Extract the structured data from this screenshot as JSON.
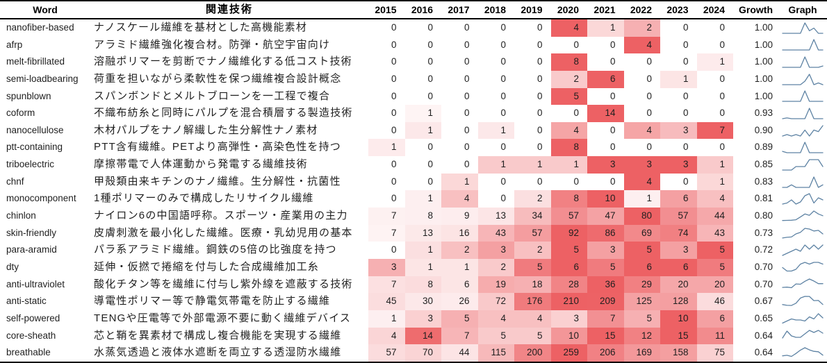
{
  "table": {
    "columns": {
      "word": "Word",
      "tech": "関連技術",
      "years": [
        "2015",
        "2016",
        "2017",
        "2018",
        "2019",
        "2020",
        "2021",
        "2022",
        "2023",
        "2024"
      ],
      "growth": "Growth",
      "graph": "Graph"
    }
  },
  "colors": {
    "heat_max_rgb": [
      237,
      97,
      100
    ],
    "heat_min": "#ffffff",
    "sparkline": "#5d82a3",
    "rule": "#000000",
    "text": "#1f1f1f"
  },
  "chart_data": {
    "type": "heatmap",
    "title": "",
    "x": [
      2015,
      2016,
      2017,
      2018,
      2019,
      2020,
      2021,
      2022,
      2023,
      2024
    ],
    "value_scale": "per-row normalized, white to red",
    "legend_position": "none",
    "grid": false,
    "rows": [
      {
        "word": "nanofiber-based",
        "tech": "ナノスケール繊維を基材とした高機能素材",
        "values": [
          0,
          0,
          0,
          0,
          0,
          4,
          1,
          2,
          0,
          0
        ],
        "growth": "1.00"
      },
      {
        "word": "afrp",
        "tech": "アラミド繊維強化複合材。防弾・航空宇宙向け",
        "values": [
          0,
          0,
          0,
          0,
          0,
          0,
          0,
          4,
          0,
          0
        ],
        "growth": "1.00"
      },
      {
        "word": "melt-fibrillated",
        "tech": "溶融ポリマーを剪断でナノ繊維化する低コスト技術",
        "values": [
          0,
          0,
          0,
          0,
          0,
          8,
          0,
          0,
          0,
          1
        ],
        "growth": "1.00"
      },
      {
        "word": "semi-loadbearing",
        "tech": "荷重を担いながら柔軟性を保つ繊維複合設計概念",
        "values": [
          0,
          0,
          0,
          0,
          0,
          2,
          6,
          0,
          1,
          0
        ],
        "growth": "1.00"
      },
      {
        "word": "spunblown",
        "tech": "スパンボンドとメルトブローンを一工程で複合",
        "values": [
          0,
          0,
          0,
          0,
          0,
          5,
          0,
          0,
          0,
          0
        ],
        "growth": "1.00"
      },
      {
        "word": "coform",
        "tech": "不織布紡糸と同時にパルプを混合積層する製造技術",
        "values": [
          0,
          1,
          0,
          0,
          0,
          0,
          14,
          0,
          0,
          0
        ],
        "growth": "0.93"
      },
      {
        "word": "nanocellulose",
        "tech": "木材パルプをナノ解繊した生分解性ナノ素材",
        "values": [
          0,
          1,
          0,
          1,
          0,
          4,
          0,
          4,
          3,
          7
        ],
        "growth": "0.90"
      },
      {
        "word": "ptt-containing",
        "tech": "PTT含有繊維。PETより高弾性・高染色性を持つ",
        "values": [
          1,
          0,
          0,
          0,
          0,
          8,
          0,
          0,
          0,
          0
        ],
        "growth": "0.89"
      },
      {
        "word": "triboelectric",
        "tech": "摩擦帯電で人体運動から発電する繊維技術",
        "values": [
          0,
          0,
          0,
          1,
          1,
          1,
          3,
          3,
          3,
          1
        ],
        "growth": "0.85"
      },
      {
        "word": "chnf",
        "tech": "甲殻類由来キチンのナノ繊維。生分解性・抗菌性",
        "values": [
          0,
          0,
          1,
          0,
          0,
          0,
          0,
          4,
          0,
          1
        ],
        "growth": "0.83"
      },
      {
        "word": "monocomponent",
        "tech": "1種ポリマーのみで構成したリサイクル繊維",
        "values": [
          0,
          1,
          4,
          0,
          2,
          8,
          10,
          1,
          6,
          4
        ],
        "growth": "0.81"
      },
      {
        "word": "chinlon",
        "tech": "ナイロン6の中国語呼称。スポーツ・産業用の主力",
        "values": [
          7,
          8,
          9,
          13,
          34,
          57,
          47,
          80,
          57,
          44
        ],
        "growth": "0.80"
      },
      {
        "word": "skin-friendly",
        "tech": "皮膚刺激を最小化した繊維。医療・乳幼児用の基本",
        "values": [
          7,
          13,
          16,
          43,
          57,
          92,
          86,
          69,
          74,
          43
        ],
        "growth": "0.73"
      },
      {
        "word": "para-aramid",
        "tech": "パラ系アラミド繊維。鋼鉄の5倍の比強度を持つ",
        "values": [
          0,
          1,
          2,
          3,
          2,
          5,
          3,
          5,
          3,
          5
        ],
        "growth": "0.72"
      },
      {
        "word": "dty",
        "tech": "延伸・仮撚で捲縮を付与した合成繊維加工糸",
        "values": [
          3,
          1,
          1,
          2,
          5,
          6,
          5,
          6,
          6,
          5
        ],
        "growth": "0.70"
      },
      {
        "word": "anti-ultraviolet",
        "tech": "酸化チタン等を繊維に付与し紫外線を遮蔽する技術",
        "values": [
          7,
          8,
          6,
          19,
          18,
          28,
          36,
          29,
          20,
          20
        ],
        "growth": "0.70"
      },
      {
        "word": "anti-static",
        "tech": "導電性ポリマー等で静電気帯電を防止する繊維",
        "values": [
          45,
          30,
          26,
          72,
          176,
          210,
          209,
          125,
          128,
          46
        ],
        "growth": "0.67"
      },
      {
        "word": "self-powered",
        "tech": "TENGや圧電等で外部電源不要に動く繊維デバイス",
        "values": [
          1,
          3,
          5,
          4,
          4,
          3,
          7,
          5,
          10,
          6
        ],
        "growth": "0.65"
      },
      {
        "word": "core-sheath",
        "tech": "芯と鞘を異素材で構成し複合機能を実現する繊維",
        "values": [
          4,
          14,
          7,
          5,
          5,
          10,
          15,
          12,
          15,
          11
        ],
        "growth": "0.64"
      },
      {
        "word": "breathable",
        "tech": "水蒸気透過と液体水遮断を両立する透湿防水繊維",
        "values": [
          57,
          70,
          44,
          115,
          200,
          259,
          206,
          169,
          158,
          75
        ],
        "growth": "0.64"
      }
    ]
  }
}
